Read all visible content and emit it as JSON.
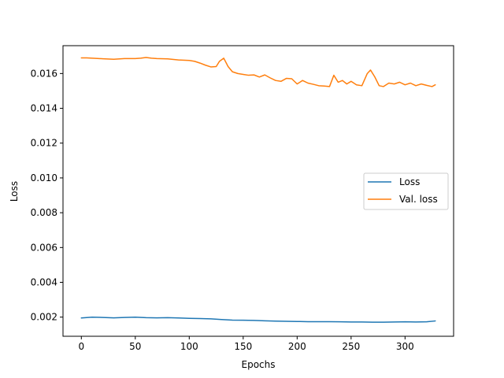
{
  "chart_data": {
    "type": "line",
    "title": "",
    "xlabel": "Epochs",
    "ylabel": "Loss",
    "xlim": [
      -17,
      345
    ],
    "ylim": [
      0.0009,
      0.0176
    ],
    "xticks": [
      0,
      50,
      100,
      150,
      200,
      250,
      300
    ],
    "yticks": [
      0.002,
      0.004,
      0.006,
      0.008,
      0.01,
      0.012,
      0.014,
      0.016
    ],
    "ytick_labels": [
      "0.002",
      "0.004",
      "0.006",
      "0.008",
      "0.010",
      "0.012",
      "0.014",
      "0.016"
    ],
    "grid": false,
    "legend": {
      "position": "center-right"
    },
    "series": [
      {
        "name": "Loss",
        "color": "#1f77b4",
        "x": [
          0,
          10,
          20,
          30,
          40,
          50,
          60,
          70,
          80,
          90,
          100,
          110,
          120,
          130,
          140,
          150,
          160,
          170,
          180,
          190,
          200,
          210,
          220,
          230,
          240,
          250,
          260,
          270,
          280,
          290,
          300,
          310,
          320,
          328
        ],
        "values": [
          0.00195,
          0.002,
          0.00198,
          0.00196,
          0.00198,
          0.002,
          0.00197,
          0.00196,
          0.00197,
          0.00195,
          0.00193,
          0.00192,
          0.0019,
          0.00186,
          0.00183,
          0.00182,
          0.00181,
          0.00179,
          0.00177,
          0.00176,
          0.00175,
          0.00174,
          0.00174,
          0.00174,
          0.00173,
          0.00172,
          0.00172,
          0.00171,
          0.00171,
          0.00172,
          0.00173,
          0.00172,
          0.00173,
          0.00178
        ]
      },
      {
        "name": "Val. loss",
        "color": "#ff7f0e",
        "x": [
          0,
          5,
          10,
          20,
          30,
          40,
          50,
          55,
          60,
          65,
          70,
          80,
          90,
          100,
          105,
          110,
          115,
          120,
          125,
          128,
          132,
          136,
          140,
          145,
          150,
          155,
          160,
          165,
          170,
          175,
          180,
          185,
          190,
          195,
          200,
          205,
          210,
          215,
          220,
          225,
          230,
          234,
          238,
          242,
          246,
          250,
          255,
          260,
          265,
          268,
          272,
          276,
          280,
          285,
          290,
          295,
          300,
          305,
          310,
          315,
          320,
          325,
          328
        ],
        "values": [
          0.0169,
          0.0169,
          0.01688,
          0.01685,
          0.01682,
          0.01686,
          0.01686,
          0.01688,
          0.01692,
          0.01688,
          0.01686,
          0.01684,
          0.01678,
          0.01675,
          0.0167,
          0.0166,
          0.01648,
          0.01638,
          0.0164,
          0.0167,
          0.01688,
          0.0164,
          0.0161,
          0.016,
          0.01595,
          0.0159,
          0.01592,
          0.0158,
          0.01592,
          0.01575,
          0.0156,
          0.01555,
          0.01572,
          0.0157,
          0.0154,
          0.0156,
          0.01545,
          0.01538,
          0.0153,
          0.01528,
          0.01525,
          0.0159,
          0.0155,
          0.0156,
          0.0154,
          0.01555,
          0.01535,
          0.0153,
          0.016,
          0.0162,
          0.0158,
          0.0153,
          0.01525,
          0.01545,
          0.0154,
          0.0155,
          0.01535,
          0.01545,
          0.0153,
          0.0154,
          0.01532,
          0.01525,
          0.01535
        ]
      }
    ]
  }
}
